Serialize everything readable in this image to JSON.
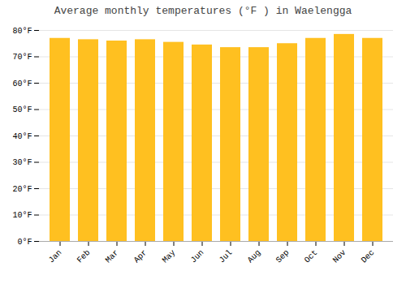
{
  "chart_data": {
    "type": "bar",
    "title": "Average monthly temperatures (°F ) in Waelengga",
    "categories": [
      "Jan",
      "Feb",
      "Mar",
      "Apr",
      "May",
      "Jun",
      "Jul",
      "Aug",
      "Sep",
      "Oct",
      "Nov",
      "Dec"
    ],
    "values": [
      77,
      76.5,
      76,
      76.5,
      75.5,
      74.5,
      73.5,
      73.5,
      75,
      77,
      78.5,
      77
    ],
    "color": "#FFC020",
    "ylim": [
      0,
      80
    ],
    "yticks": [
      {
        "value": 0,
        "label": "0°F"
      },
      {
        "value": 10,
        "label": "10°F"
      },
      {
        "value": 20,
        "label": "20°F"
      },
      {
        "value": 30,
        "label": "30°F"
      },
      {
        "value": 40,
        "label": "40°F"
      },
      {
        "value": 50,
        "label": "50°F"
      },
      {
        "value": 60,
        "label": "60°F"
      },
      {
        "value": 70,
        "label": "70°F"
      },
      {
        "value": 80,
        "label": "80°F"
      }
    ],
    "grid": true
  }
}
